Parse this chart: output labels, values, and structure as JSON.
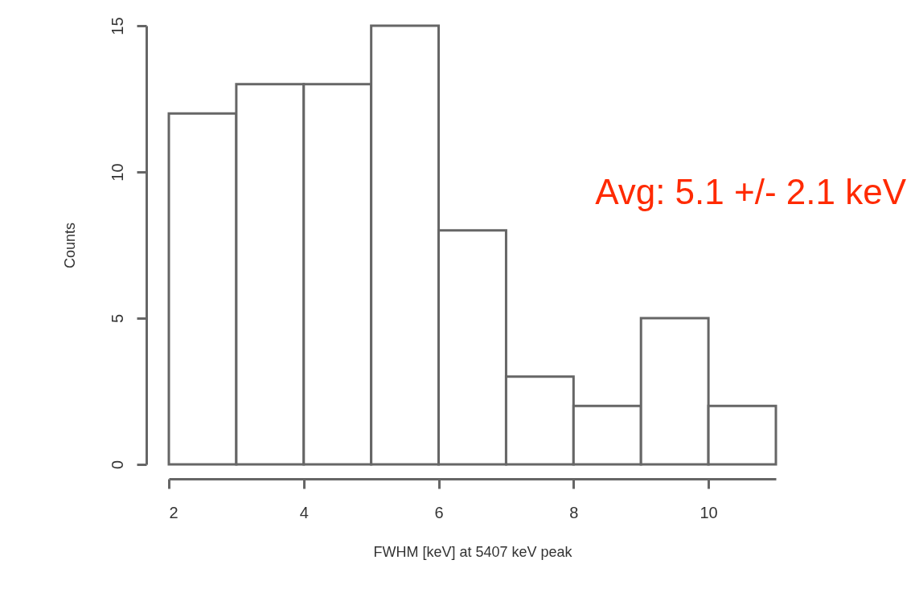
{
  "chart_data": {
    "type": "histogram",
    "xlabel": "FWHM [keV] at 5407 keV peak",
    "ylabel": "Counts",
    "bins": [
      2,
      3,
      4,
      5,
      6,
      7,
      8,
      9,
      10,
      11
    ],
    "values": [
      12,
      13,
      13,
      15,
      8,
      3,
      2,
      5,
      2
    ],
    "xlim": [
      2,
      11
    ],
    "xticks": [
      2,
      4,
      6,
      8,
      10
    ],
    "ylim": [
      0,
      15
    ],
    "yticks": [
      0,
      5,
      10,
      15
    ],
    "grid": false,
    "annotations": [
      "Avg: 5.1 +/- 2.1 keV"
    ]
  }
}
